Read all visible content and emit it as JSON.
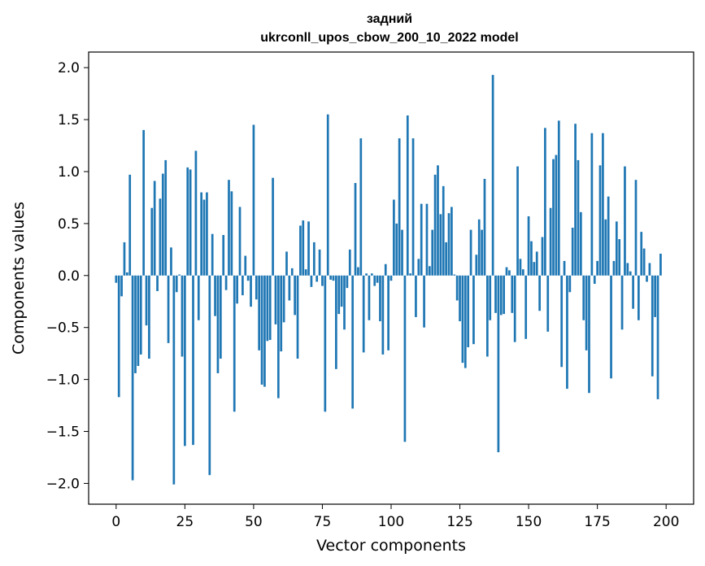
{
  "chart_data": {
    "type": "bar",
    "title": "задний",
    "subtitle": "ukrconll_upos_cbow_200_10_2022 model",
    "xlabel": "Vector components",
    "ylabel": "Components values",
    "xlim": [
      -10,
      210
    ],
    "ylim": [
      -2.2,
      2.15
    ],
    "xticks": [
      0,
      25,
      50,
      75,
      100,
      125,
      150,
      175,
      200
    ],
    "yticks": [
      -2.0,
      -1.5,
      -1.0,
      -0.5,
      0.0,
      0.5,
      1.0,
      1.5,
      2.0
    ],
    "ytick_labels": [
      "−2.0",
      "−1.5",
      "−1.0",
      "−0.5",
      "0.0",
      "0.5",
      "1.0",
      "1.5",
      "2.0"
    ],
    "bar_color": "#1f77b4",
    "grid": false,
    "values": [
      -0.07,
      -1.17,
      -0.2,
      0.32,
      0.03,
      0.97,
      -1.97,
      -0.94,
      -0.87,
      -0.76,
      1.4,
      -0.48,
      -0.8,
      0.65,
      0.91,
      -0.15,
      0.74,
      0.98,
      1.11,
      -0.65,
      0.27,
      -2.01,
      -0.16,
      0.01,
      -0.78,
      -1.64,
      1.04,
      1.02,
      -1.63,
      1.2,
      -0.43,
      0.8,
      0.73,
      0.8,
      -1.92,
      0.4,
      -0.39,
      -0.94,
      -0.8,
      0.39,
      -0.14,
      0.92,
      0.81,
      -1.31,
      -0.27,
      0.66,
      -0.19,
      0.19,
      -0.05,
      -0.3,
      1.45,
      -0.23,
      -0.72,
      -1.05,
      -1.07,
      -0.63,
      -0.62,
      0.94,
      -0.47,
      -1.18,
      -0.73,
      -0.45,
      0.23,
      -0.24,
      0.07,
      -0.38,
      -0.8,
      0.48,
      0.53,
      0.06,
      0.52,
      -0.11,
      0.32,
      -0.06,
      0.25,
      -0.1,
      -1.31,
      1.55,
      -0.04,
      -0.05,
      -0.9,
      -0.37,
      -0.3,
      -0.52,
      -0.12,
      0.25,
      -1.28,
      0.89,
      0.08,
      1.32,
      -0.74,
      0.02,
      -0.43,
      0.02,
      -0.1,
      -0.07,
      -0.44,
      -0.76,
      0.11,
      -0.72,
      -0.05,
      0.73,
      0.5,
      1.32,
      0.44,
      -1.6,
      1.54,
      0.02,
      1.32,
      -0.4,
      0.16,
      0.69,
      -0.5,
      0.69,
      0.09,
      0.44,
      0.97,
      1.06,
      0.59,
      0.86,
      0.32,
      0.6,
      0.66,
      0.01,
      -0.24,
      -0.44,
      -0.84,
      -0.89,
      -0.69,
      0.44,
      -0.66,
      0.2,
      0.54,
      0.44,
      0.93,
      -0.78,
      -0.43,
      1.93,
      -0.36,
      -1.7,
      -0.38,
      -0.37,
      0.08,
      0.05,
      -0.36,
      -0.64,
      1.05,
      0.16,
      0.06,
      -0.61,
      0.57,
      0.33,
      0.13,
      0.23,
      -0.34,
      0.37,
      1.42,
      -0.54,
      0.65,
      1.12,
      1.16,
      1.49,
      -0.88,
      0.14,
      -1.09,
      -0.16,
      0.46,
      1.46,
      1.11,
      0.61,
      -0.43,
      -0.72,
      -1.13,
      1.37,
      -0.08,
      0.14,
      1.06,
      1.37,
      0.54,
      0.76,
      -0.99,
      0.14,
      0.52,
      0.35,
      -0.52,
      1.05,
      0.12,
      0.04,
      -0.32,
      0.92,
      -0.43,
      0.42,
      0.26,
      -0.06,
      0.12,
      -0.97,
      -0.4,
      -1.19,
      0.21
    ]
  }
}
